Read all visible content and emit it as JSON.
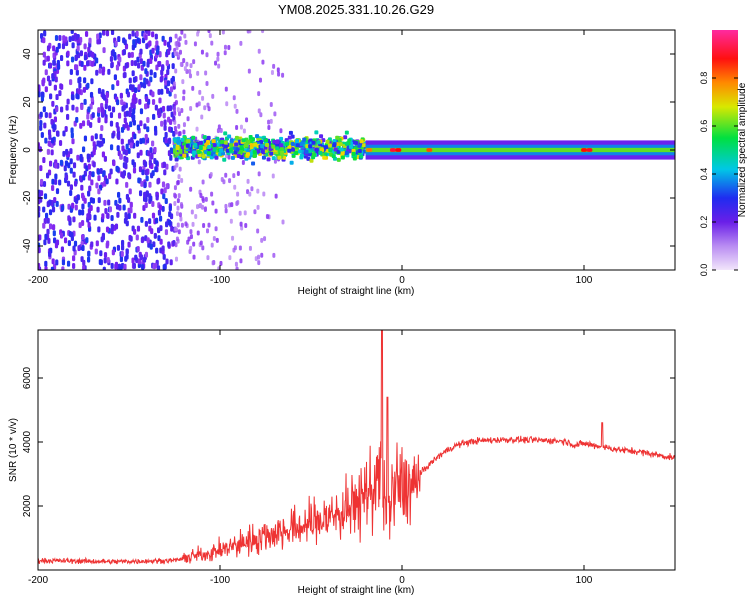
{
  "figure_title": "YM08.2025.331.10.26.G29",
  "chart_data": [
    {
      "type": "heatmap",
      "title": "",
      "xlabel": "Height of straight line (km)",
      "ylabel": "Frequency (Hz)",
      "xlim": [
        -200,
        150
      ],
      "ylim": [
        -50,
        50
      ],
      "x_ticks": [
        -200,
        -100,
        0,
        100
      ],
      "y_ticks": [
        -40,
        -20,
        0,
        20,
        40
      ],
      "colorbar": {
        "label": "Normalized spectral amplitude",
        "range": [
          0,
          1
        ],
        "ticks": [
          0.0,
          0.2,
          0.4,
          0.6,
          0.8
        ],
        "colors": [
          "#e9d8f7",
          "#7d1ff0",
          "#1f2cf0",
          "#00c8e6",
          "#00e040",
          "#f0e000",
          "#ff7a00",
          "#ff0000",
          "#ff2aa0"
        ]
      },
      "regions": [
        {
          "x_range": [
            -200,
            -125
          ],
          "freq_range": [
            -50,
            50
          ],
          "pattern": "broadband noise",
          "amplitude": 0.15
        },
        {
          "x_range": [
            -125,
            -20
          ],
          "freq_range": [
            -8,
            8
          ],
          "pattern": "scattered signal",
          "amplitude": 0.35
        },
        {
          "x_range": [
            -20,
            150
          ],
          "freq_range": [
            -3,
            3
          ],
          "pattern": "narrow line at 0 Hz",
          "amplitude": 0.55
        }
      ]
    },
    {
      "type": "line",
      "title": "",
      "xlabel": "Height of straight line (km)",
      "ylabel": "SNR (10 * v/v)",
      "xlim": [
        -200,
        150
      ],
      "ylim": [
        0,
        7500
      ],
      "x_ticks": [
        -200,
        -100,
        0,
        100
      ],
      "y_ticks": [
        2000,
        4000,
        6000
      ],
      "series": [
        {
          "name": "SNR",
          "color": "#ee3333",
          "x": [
            -200,
            -180,
            -160,
            -140,
            -125,
            -115,
            -100,
            -90,
            -80,
            -70,
            -60,
            -50,
            -40,
            -30,
            -25,
            -20,
            -15,
            -12,
            -10,
            -8,
            -5,
            0,
            5,
            10,
            15,
            20,
            25,
            30,
            35,
            40,
            50,
            60,
            70,
            80,
            90,
            95,
            100,
            110,
            120,
            130,
            140,
            150
          ],
          "values": [
            300,
            280,
            260,
            280,
            300,
            420,
            600,
            800,
            1000,
            1150,
            1300,
            1450,
            1650,
            1900,
            2100,
            2400,
            2700,
            3000,
            2300,
            1700,
            2500,
            2700,
            2500,
            3000,
            3300,
            3550,
            3750,
            3900,
            3980,
            4030,
            4060,
            4080,
            4060,
            4050,
            4020,
            3900,
            3950,
            3850,
            3750,
            3700,
            3600,
            3500
          ],
          "peaks": [
            {
              "x": -11,
              "y": 7500
            },
            {
              "x": -8,
              "y": 5400
            },
            {
              "x": 110,
              "y": 4600
            }
          ]
        }
      ]
    }
  ]
}
